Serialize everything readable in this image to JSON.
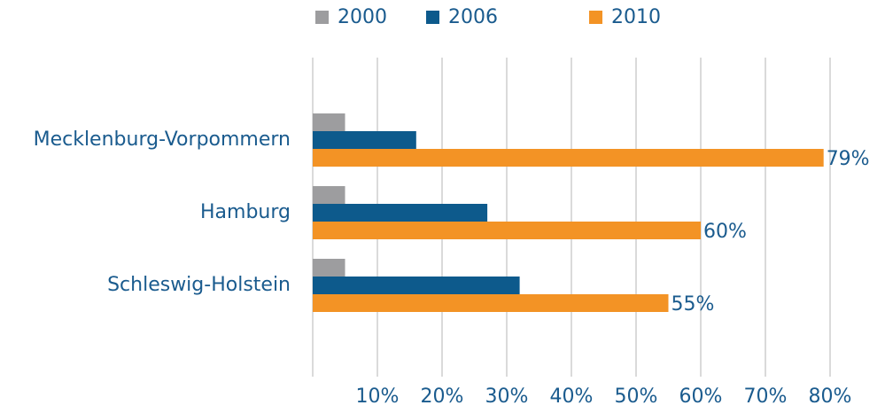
{
  "chart_data": {
    "type": "hbar",
    "categories": [
      "Mecklenburg-Vorpommern",
      "Hamburg",
      "Schleswig-Holstein"
    ],
    "series": [
      {
        "name": "2000",
        "color": "#9d9d9f",
        "values": [
          5,
          5,
          5
        ]
      },
      {
        "name": "2006",
        "color": "#0d5a8c",
        "values": [
          16,
          27,
          32
        ]
      },
      {
        "name": "2010",
        "color": "#f39325",
        "values": [
          79,
          60,
          55
        ],
        "value_labels": [
          "79%",
          "60%",
          "55%"
        ]
      }
    ],
    "xlim": [
      0,
      80
    ],
    "xticks": [
      {
        "value": 10,
        "label": "10%"
      },
      {
        "value": 20,
        "label": "20%"
      },
      {
        "value": 30,
        "label": "30%"
      },
      {
        "value": 40,
        "label": "40%"
      },
      {
        "value": 50,
        "label": "50%"
      },
      {
        "value": 60,
        "label": "60%"
      },
      {
        "value": 70,
        "label": "70%"
      },
      {
        "value": 80,
        "label": "80%"
      }
    ],
    "grid": true,
    "legend": "top"
  }
}
